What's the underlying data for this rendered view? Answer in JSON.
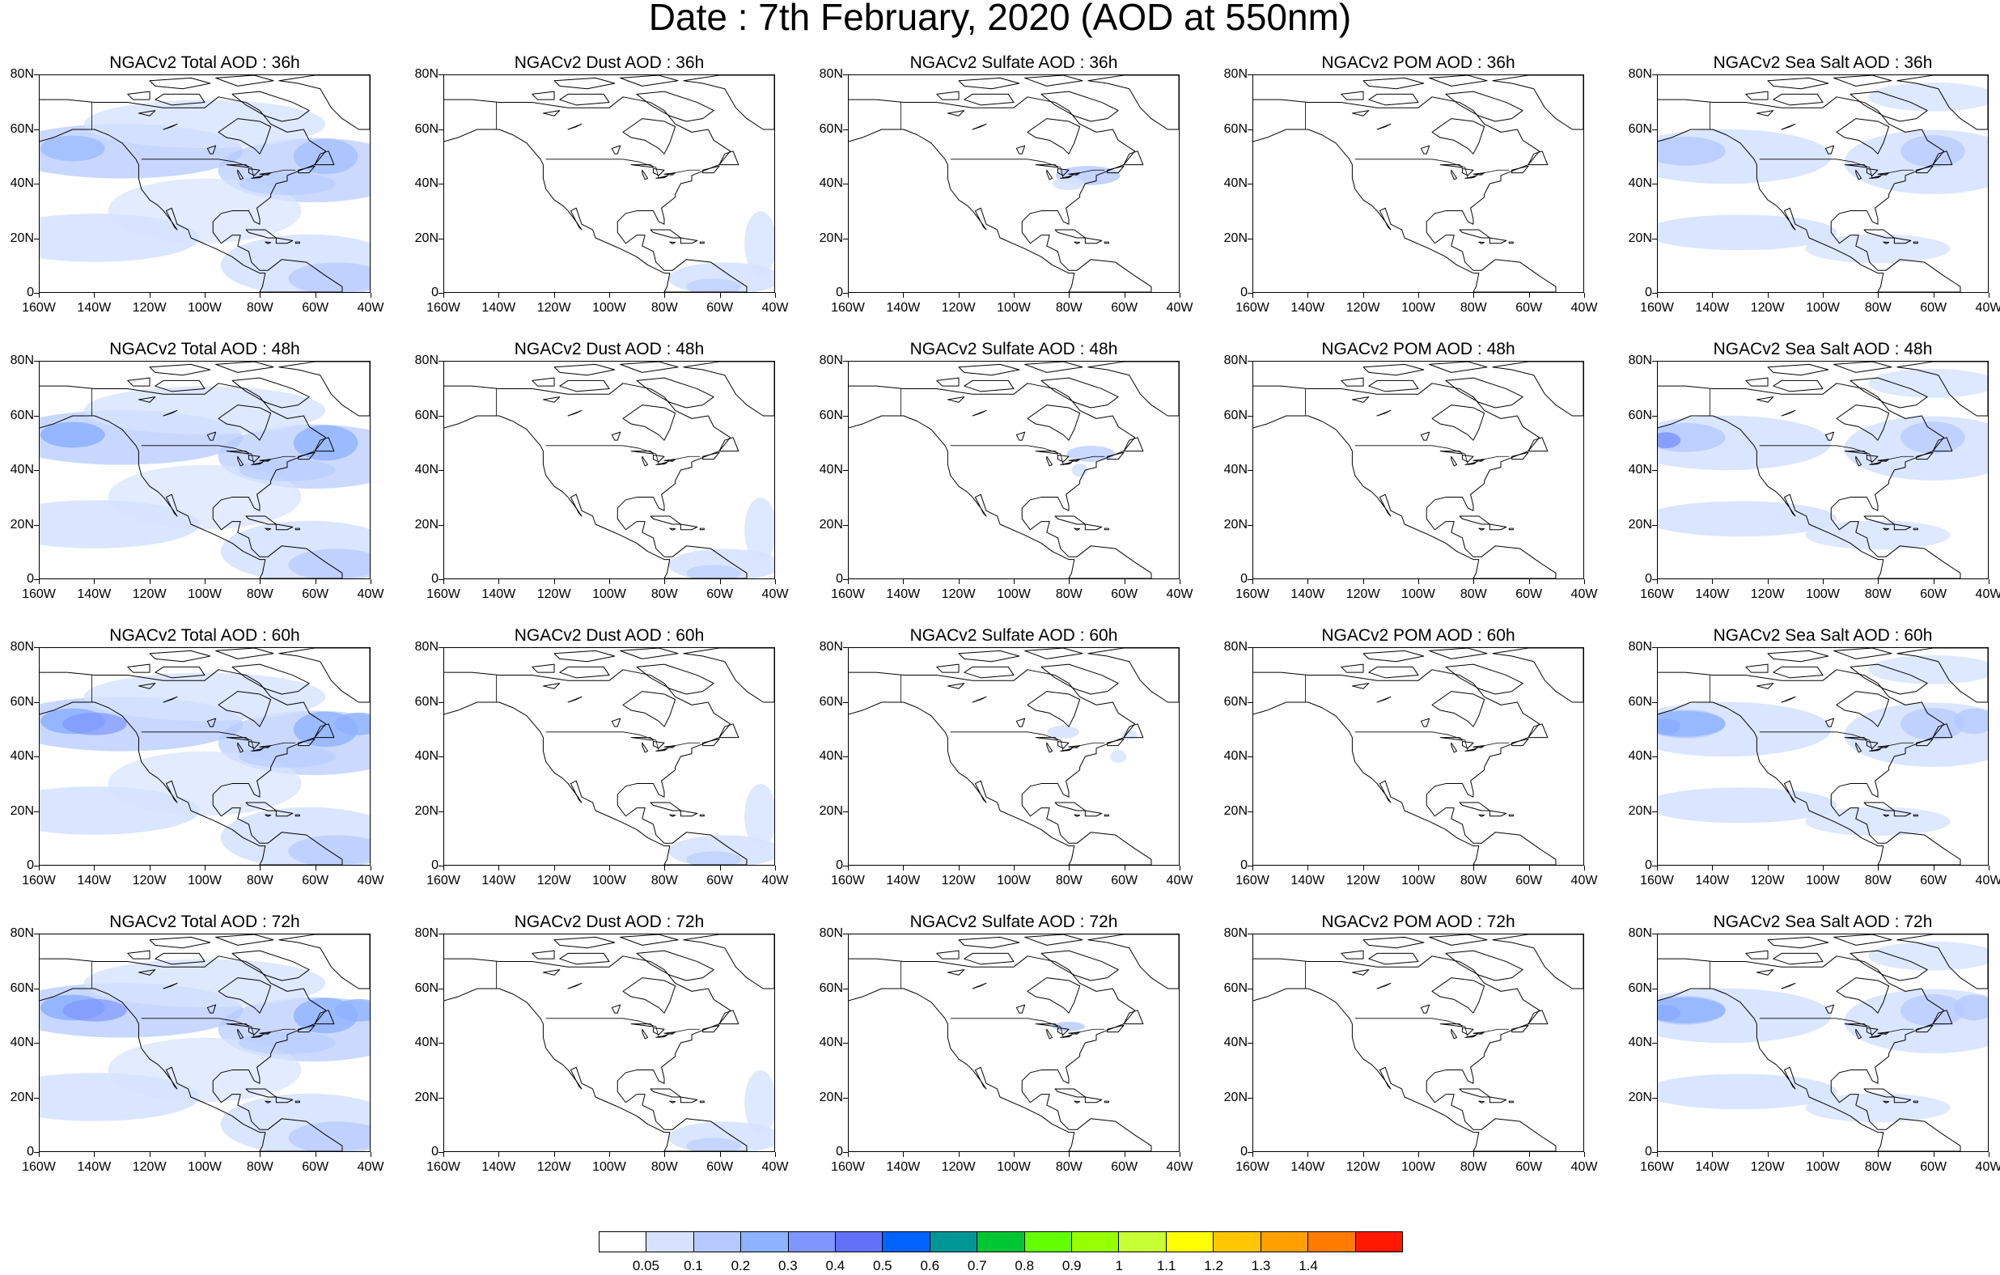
{
  "title": "Date : 7th February, 2020 (AOD at 550nm)",
  "axes": {
    "lat_labels": [
      "80N",
      "60N",
      "40N",
      "20N",
      "0"
    ],
    "lon_labels": [
      "160W",
      "140W",
      "120W",
      "100W",
      "80W",
      "60W",
      "40W"
    ],
    "lat_range": [
      0,
      80
    ],
    "lon_range": [
      -160,
      -40
    ]
  },
  "rows": [
    {
      "panels": [
        {
          "title": "NGACv2 Total AOD : 36h",
          "field": "total"
        },
        {
          "title": "NGACv2 Dust AOD : 36h",
          "field": "dust"
        },
        {
          "title": "NGACv2 Sulfate AOD : 36h",
          "field": "sulfate"
        },
        {
          "title": "NGACv2 POM AOD : 36h",
          "field": "pom"
        },
        {
          "title": "NGACv2 Sea Salt AOD : 36h",
          "field": "seasalt"
        }
      ]
    },
    {
      "panels": [
        {
          "title": "NGACv2 Total AOD : 48h",
          "field": "total"
        },
        {
          "title": "NGACv2 Dust AOD : 48h",
          "field": "dust"
        },
        {
          "title": "NGACv2 Sulfate AOD : 48h",
          "field": "sulfate"
        },
        {
          "title": "NGACv2 POM AOD : 48h",
          "field": "pom"
        },
        {
          "title": "NGACv2 Sea Salt AOD : 48h",
          "field": "seasalt"
        }
      ]
    },
    {
      "panels": [
        {
          "title": "NGACv2 Total AOD : 60h",
          "field": "total"
        },
        {
          "title": "NGACv2 Dust AOD : 60h",
          "field": "dust"
        },
        {
          "title": "NGACv2 Sulfate AOD : 60h",
          "field": "sulfate"
        },
        {
          "title": "NGACv2 POM AOD : 60h",
          "field": "pom"
        },
        {
          "title": "NGACv2 Sea Salt AOD : 60h",
          "field": "seasalt"
        }
      ]
    },
    {
      "panels": [
        {
          "title": "NGACv2 Total AOD : 72h",
          "field": "total"
        },
        {
          "title": "NGACv2 Dust AOD : 72h",
          "field": "dust"
        },
        {
          "title": "NGACv2 Sulfate AOD : 72h",
          "field": "sulfate"
        },
        {
          "title": "NGACv2 POM AOD : 72h",
          "field": "pom"
        },
        {
          "title": "NGACv2 Sea Salt  AOD : 72h",
          "field": "seasalt"
        }
      ]
    }
  ],
  "colorbar": {
    "labels": [
      "0.05",
      "0.1",
      "0.2",
      "0.3",
      "0.4",
      "0.5",
      "0.6",
      "0.7",
      "0.8",
      "0.9",
      "1",
      "1.1",
      "1.2",
      "1.3",
      "1.4"
    ],
    "colors": [
      "#ffffff",
      "#d6e2ff",
      "#b5c9ff",
      "#8eb2ff",
      "#7f96ff",
      "#6370f8",
      "#0063ff",
      "#009696",
      "#00c633",
      "#63ff00",
      "#96ff00",
      "#c6ff33",
      "#ffff00",
      "#ffc600",
      "#ffa000",
      "#ff7c00",
      "#ff1900"
    ]
  }
}
